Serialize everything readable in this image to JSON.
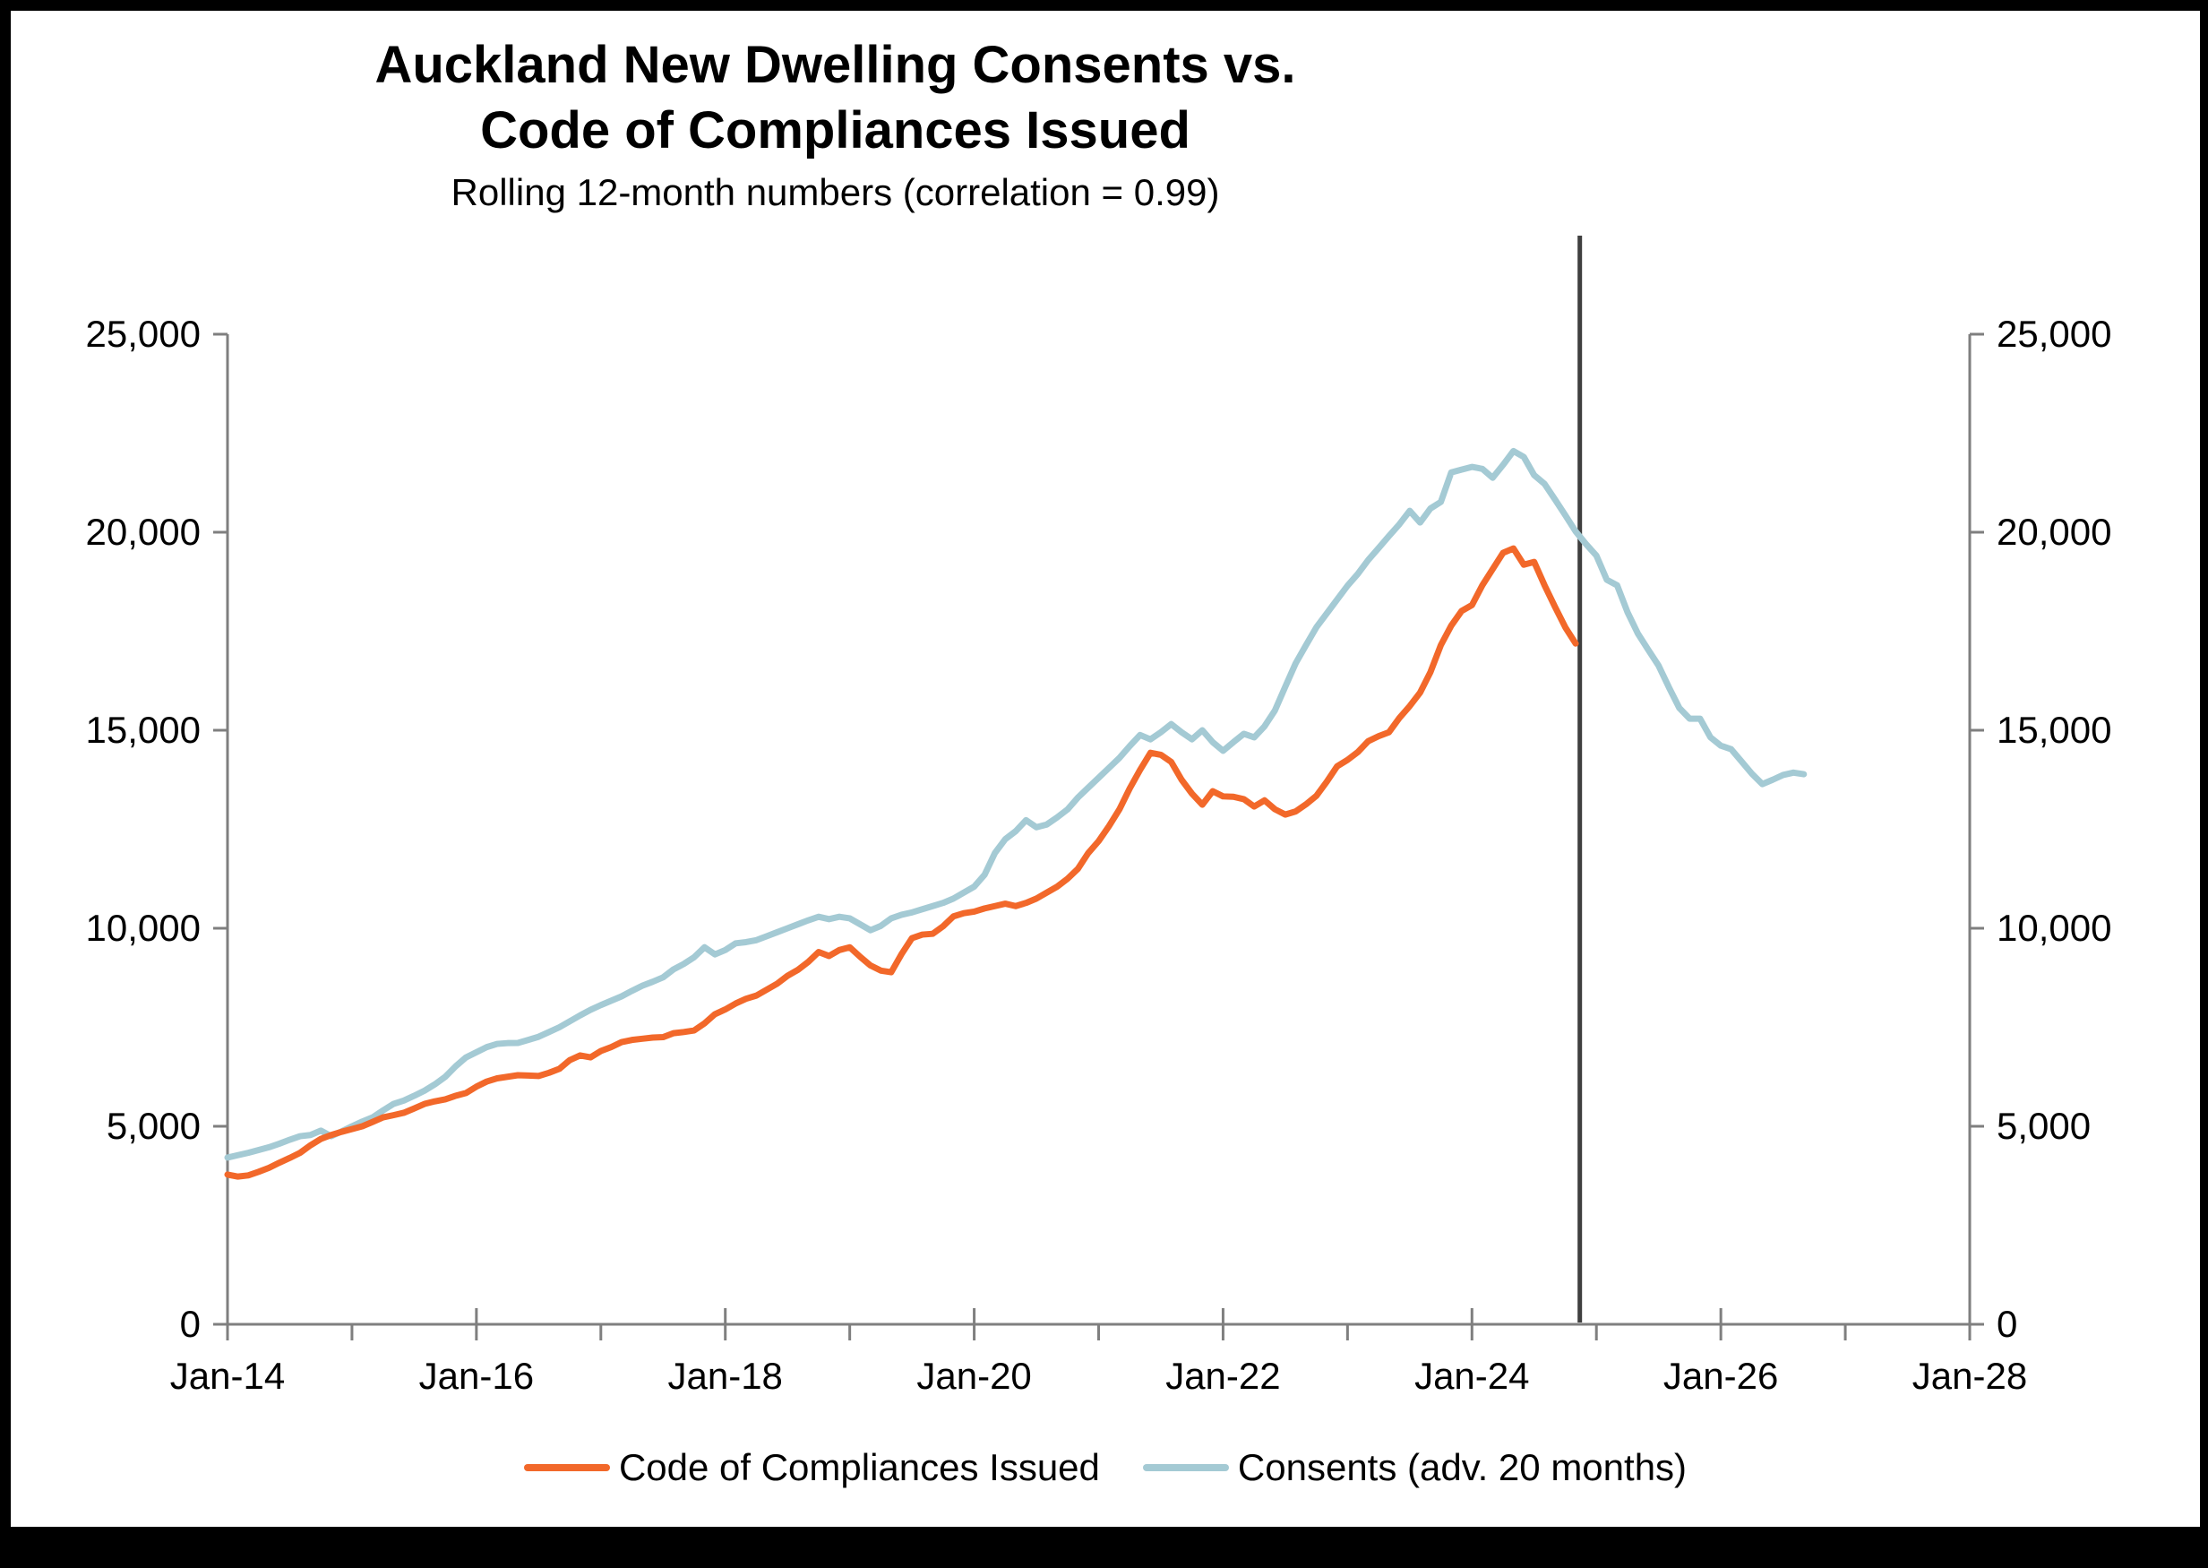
{
  "header": {
    "title_line1": "Auckland New Dwelling Consents vs.",
    "title_line2": "Code of Compliances Issued",
    "subtitle": "Rolling 12-month numbers (correlation = 0.99)"
  },
  "chart_data": {
    "type": "line",
    "title": "Auckland New Dwelling Consents vs. Code of Compliances Issued",
    "subtitle": "Rolling 12-month numbers (correlation = 0.99)",
    "background_color": "#ffffff",
    "axis_color": "#7f7f7f",
    "frame_color": "#000000",
    "grid": false,
    "legend_position": "bottom",
    "x_axis": {
      "start": "Jan-14",
      "end": "Jan-28",
      "frequency": "monthly",
      "total_months": 168,
      "major_tick_labels": [
        "Jan-14",
        "Jan-16",
        "Jan-18",
        "Jan-20",
        "Jan-22",
        "Jan-24",
        "Jan-26",
        "Jan-28"
      ],
      "minor_ticks_at_odd_years": true
    },
    "y_axis": {
      "min": 0,
      "max": 25000,
      "tick_interval": 5000,
      "tick_labels": [
        "0",
        "5,000",
        "10,000",
        "15,000",
        "20,000",
        "25,000"
      ],
      "sides": [
        "left",
        "right"
      ]
    },
    "annotation_line": {
      "label": "latest-actual-marker",
      "month_index": 130.4,
      "approx_date": "Nov-24",
      "color": "#3f3f3f"
    },
    "series": [
      {
        "name": "Code of Compliances Issued",
        "color": "#F2682A",
        "start": "Jan-14",
        "end": "Nov-24",
        "start_month_index": 0,
        "values": [
          3780,
          3730,
          3760,
          3850,
          3950,
          4080,
          4200,
          4330,
          4520,
          4680,
          4780,
          4860,
          4930,
          5000,
          5110,
          5225,
          5280,
          5340,
          5450,
          5565,
          5630,
          5680,
          5770,
          5840,
          6000,
          6130,
          6210,
          6250,
          6290,
          6280,
          6270,
          6350,
          6450,
          6670,
          6790,
          6740,
          6900,
          7000,
          7125,
          7180,
          7210,
          7240,
          7250,
          7350,
          7380,
          7420,
          7600,
          7830,
          7950,
          8100,
          8220,
          8300,
          8450,
          8600,
          8800,
          8950,
          9150,
          9400,
          9300,
          9450,
          9520,
          9280,
          9060,
          8930,
          8890,
          9350,
          9750,
          9840,
          9860,
          10050,
          10300,
          10380,
          10420,
          10500,
          10560,
          10620,
          10560,
          10640,
          10750,
          10900,
          11050,
          11250,
          11500,
          11900,
          12200,
          12580,
          13000,
          13530,
          14000,
          14430,
          14380,
          14200,
          13750,
          13400,
          13120,
          13460,
          13330,
          13320,
          13260,
          13075,
          13230,
          13005,
          12870,
          12950,
          13130,
          13345,
          13700,
          14090,
          14250,
          14450,
          14725,
          14850,
          14950,
          15310,
          15610,
          15950,
          16470,
          17150,
          17640,
          18010,
          18160,
          18660,
          19070,
          19480,
          19590,
          19180,
          19250,
          18660,
          18120,
          17600,
          17190
        ]
      },
      {
        "name": "Consents (adv. 20 months)",
        "color": "#A4CAD4",
        "start": "Jan-14",
        "end": "Sep-26",
        "start_month_index": 0,
        "values": [
          4210,
          4270,
          4330,
          4400,
          4470,
          4560,
          4660,
          4750,
          4780,
          4890,
          4750,
          4870,
          5000,
          5120,
          5225,
          5400,
          5565,
          5650,
          5770,
          5900,
          6060,
          6250,
          6515,
          6740,
          6870,
          7000,
          7080,
          7100,
          7105,
          7180,
          7260,
          7380,
          7500,
          7650,
          7800,
          7940,
          8060,
          8170,
          8280,
          8420,
          8550,
          8650,
          8760,
          8960,
          9100,
          9270,
          9520,
          9340,
          9450,
          9620,
          9650,
          9700,
          9800,
          9900,
          10000,
          10100,
          10200,
          10290,
          10230,
          10290,
          10250,
          10100,
          9950,
          10060,
          10250,
          10340,
          10400,
          10480,
          10560,
          10640,
          10750,
          10900,
          11050,
          11350,
          11900,
          12250,
          12450,
          12730,
          12550,
          12620,
          12800,
          13000,
          13300,
          13550,
          13800,
          14050,
          14300,
          14600,
          14880,
          14770,
          14950,
          15155,
          14950,
          14770,
          15000,
          14700,
          14480,
          14700,
          14910,
          14820,
          15100,
          15500,
          16100,
          16690,
          17150,
          17600,
          17950,
          18300,
          18650,
          18950,
          19300,
          19600,
          19905,
          20200,
          20540,
          20245,
          20600,
          20765,
          21510,
          21580,
          21650,
          21600,
          21375,
          21700,
          22050,
          21900,
          21440,
          21220,
          20830,
          20430,
          20020,
          19700,
          19410,
          18800,
          18660,
          17980,
          17440,
          17030,
          16630,
          16080,
          15560,
          15290,
          15290,
          14820,
          14610,
          14520,
          14210,
          13900,
          13640,
          13750,
          13870,
          13930,
          13890
        ]
      }
    ]
  },
  "legend": {
    "item1_label": "Code of Compliances Issued",
    "item2_label": "Consents (adv. 20 months)"
  }
}
